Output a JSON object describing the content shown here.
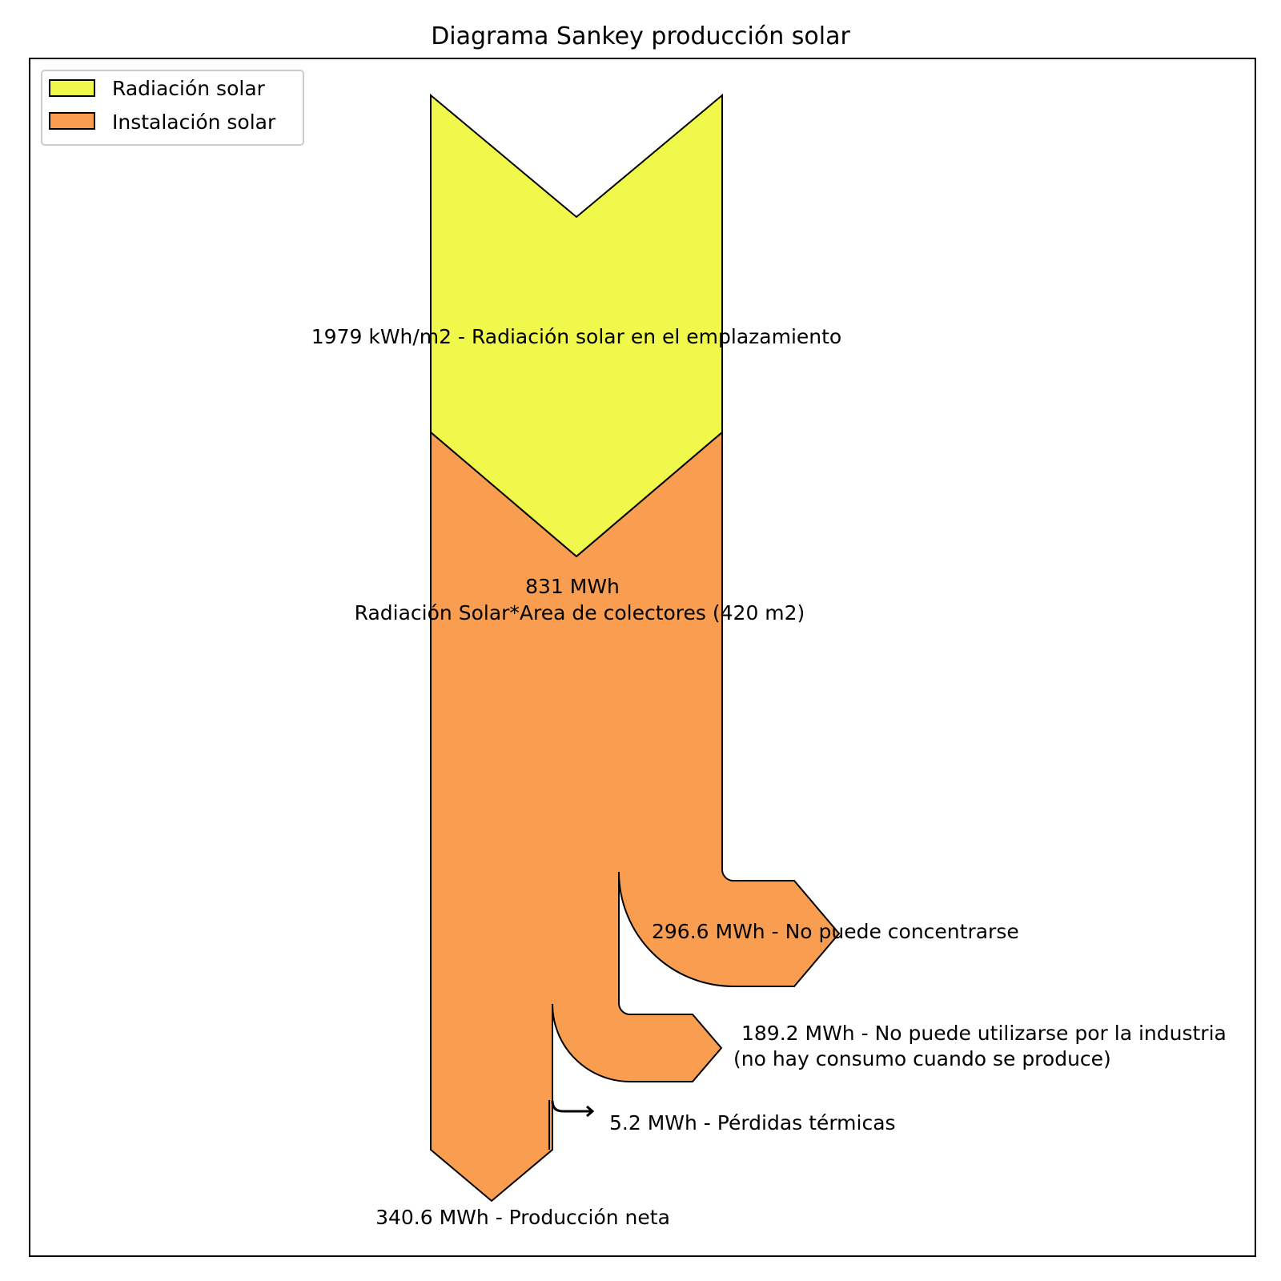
{
  "title": "Diagrama Sankey producción solar",
  "colors": {
    "radiation": "#f0f94b",
    "installation": "#f99e51",
    "outline": "#000000",
    "legend_border": "#cccccc"
  },
  "legend": [
    {
      "label": "Radiación solar",
      "color": "#f0f94b"
    },
    {
      "label": "Instalación solar",
      "color": "#f99e51"
    }
  ],
  "diagram": {
    "input": {
      "value": 1979,
      "unit": "kWh/m2",
      "label": "1979 kWh/m2 - Radiación solar en el emplazamiento"
    },
    "collector": {
      "value_label": "831 MWh",
      "label": "Radiación Solar*Area de colectores (420 m2)",
      "area_m2": 420,
      "value_mwh": 831
    },
    "outputs": [
      {
        "value_mwh": 296.6,
        "label": "296.6 MWh - No puede concentrarse"
      },
      {
        "value_mwh": 189.2,
        "label_line1": "189.2 MWh - No puede utilizarse por la industria",
        "label_line2": "(no hay consumo cuando se produce)"
      },
      {
        "value_mwh": 5.2,
        "label": "5.2 MWh - Pérdidas térmicas"
      },
      {
        "value_mwh": 340.6,
        "label": "340.6 MWh - Producción neta"
      }
    ]
  }
}
